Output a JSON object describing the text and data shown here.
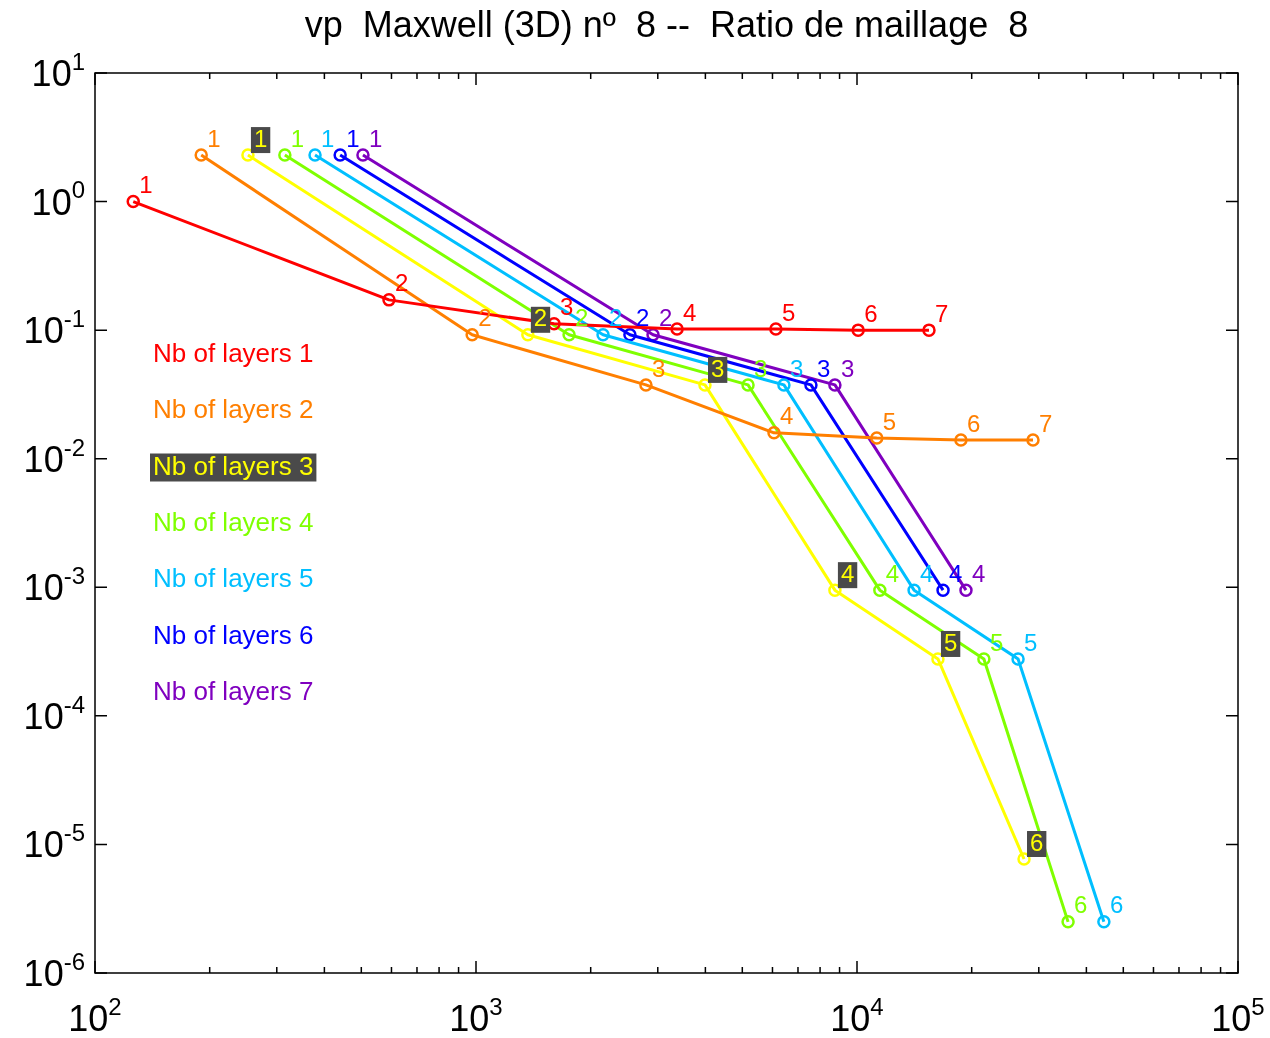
{
  "chart_data": {
    "type": "line",
    "title": "vp  Maxwell (3D) nº  8 --  Ratio de maillage  8",
    "log": "xy",
    "marker": "circle",
    "legend": "left",
    "grid": false,
    "xlim": [
      100,
      100000
    ],
    "xticks": [
      {
        "value": 100,
        "label": "10$^{2}$"
      },
      {
        "value": 200,
        "label": null
      },
      {
        "value": 300,
        "label": null
      },
      {
        "value": 400,
        "label": null
      },
      {
        "value": 500,
        "label": null
      },
      {
        "value": 600,
        "label": null
      },
      {
        "value": 700,
        "label": null
      },
      {
        "value": 800,
        "label": null
      },
      {
        "value": 900,
        "label": null
      },
      {
        "value": 1000,
        "label": "10$^{3}$"
      },
      {
        "value": 2000,
        "label": null
      },
      {
        "value": 3000,
        "label": null
      },
      {
        "value": 4000,
        "label": null
      },
      {
        "value": 5000,
        "label": null
      },
      {
        "value": 6000,
        "label": null
      },
      {
        "value": 7000,
        "label": null
      },
      {
        "value": 8000,
        "label": null
      },
      {
        "value": 9000,
        "label": null
      },
      {
        "value": 10000,
        "label": "10$^{4}$"
      },
      {
        "value": 20000,
        "label": null
      },
      {
        "value": 30000,
        "label": null
      },
      {
        "value": 40000,
        "label": null
      },
      {
        "value": 50000,
        "label": null
      },
      {
        "value": 60000,
        "label": null
      },
      {
        "value": 70000,
        "label": null
      },
      {
        "value": 80000,
        "label": null
      },
      {
        "value": 90000,
        "label": null
      },
      {
        "value": 100000,
        "label": "10$^{5}$"
      }
    ],
    "ylim": [
      1e-06,
      10
    ],
    "yticks": [
      {
        "value": 1e-06,
        "label": "10$^{-6}$"
      },
      {
        "value": 1e-05,
        "label": "10$^{-5}$"
      },
      {
        "value": 0.0001,
        "label": "10$^{-4}$"
      },
      {
        "value": 0.001,
        "label": "10$^{-3}$"
      },
      {
        "value": 0.01,
        "label": "10$^{-2}$"
      },
      {
        "value": 0.1,
        "label": "10$^{-1}$"
      },
      {
        "value": 1,
        "label": "10$^{0}$"
      },
      {
        "value": 10,
        "label": "10$^{1}$"
      }
    ],
    "series": [
      {
        "name": "Nb of layers 1",
        "color": "#ff0000",
        "x": [
          126,
          591,
          1603,
          3371,
          6125,
          10070,
          15450
        ],
        "values": [
          1.0,
          0.172,
          0.112,
          0.102,
          0.102,
          0.1,
          0.1
        ]
      },
      {
        "name": "Nb of layers 2",
        "color": "#ff7f00",
        "x": [
          190,
          977,
          2793,
          6055,
          11270,
          18740,
          28970
        ],
        "values": [
          2.3,
          0.092,
          0.0375,
          0.0159,
          0.0145,
          0.014,
          0.014
        ]
      },
      {
        "name": "Nb of layers 3",
        "color": "#ffff00",
        "x": [
          252,
          1368,
          3990,
          8750,
          16310,
          27440
        ],
        "values": [
          2.3,
          0.092,
          0.0375,
          0.00095,
          0.000277,
          7.7e-06
        ]
      },
      {
        "name": "Nb of layers 4",
        "color": "#7fff00",
        "x": [
          315,
          1755,
          5176,
          11480,
          21530,
          35810
        ],
        "values": [
          2.3,
          0.092,
          0.0375,
          0.00095,
          0.000277,
          2.5e-06
        ]
      },
      {
        "name": "Nb of layers 5",
        "color": "#00bfff",
        "x": [
          378,
          2155,
          6430,
          14120,
          26470,
          44460
        ],
        "values": [
          2.3,
          0.092,
          0.0375,
          0.00095,
          0.000277,
          2.5e-06
        ]
      },
      {
        "name": "Nb of layers 6",
        "color": "#0000ff",
        "x": [
          440,
          2535,
          7570,
          16820
        ],
        "values": [
          2.3,
          0.092,
          0.0375,
          0.00095
        ]
      },
      {
        "name": "Nb of layers 7",
        "color": "#7f00bf",
        "x": [
          505,
          2915,
          8750,
          19320
        ],
        "values": [
          2.3,
          0.092,
          0.0375,
          0.00095
        ]
      }
    ],
    "annotations": [
      {
        "text": "1",
        "x": 126,
        "y": 1.0
      },
      {
        "text": "2",
        "x": 591,
        "y": 0.172
      },
      {
        "text": "3",
        "x": 1603,
        "y": 0.112
      },
      {
        "text": "4",
        "x": 3371,
        "y": 0.102
      },
      {
        "text": "5",
        "x": 6125,
        "y": 0.102
      },
      {
        "text": "6",
        "x": 10070,
        "y": 0.1
      },
      {
        "text": "7",
        "x": 15450,
        "y": 0.1
      },
      {
        "text": "1",
        "x": 190,
        "y": 2.3
      },
      {
        "text": "2",
        "x": 977,
        "y": 0.092
      },
      {
        "text": "3",
        "x": 2793,
        "y": 0.0375
      },
      {
        "text": "4",
        "x": 6055,
        "y": 0.0159
      },
      {
        "text": "5",
        "x": 11270,
        "y": 0.0145
      },
      {
        "text": "6",
        "x": 18740,
        "y": 0.014
      },
      {
        "text": "7",
        "x": 28970,
        "y": 0.014
      },
      {
        "text": "1",
        "x": 252,
        "y": 2.3
      },
      {
        "text": "2",
        "x": 1368,
        "y": 0.092
      },
      {
        "text": "3",
        "x": 3990,
        "y": 0.0375
      },
      {
        "text": "4",
        "x": 8750,
        "y": 0.00095
      },
      {
        "text": "5",
        "x": 16310,
        "y": 0.000277
      },
      {
        "text": "6",
        "x": 27440,
        "y": 7.7e-06
      },
      {
        "text": "1",
        "x": 315,
        "y": 2.3
      },
      {
        "text": "2",
        "x": 1755,
        "y": 0.092
      },
      {
        "text": "3",
        "x": 5176,
        "y": 0.0375
      },
      {
        "text": "4",
        "x": 11480,
        "y": 0.00095
      },
      {
        "text": "5",
        "x": 21530,
        "y": 0.000277
      },
      {
        "text": "6",
        "x": 35810,
        "y": 2.5e-06
      },
      {
        "text": "1",
        "x": 378,
        "y": 2.3
      },
      {
        "text": "2",
        "x": 2155,
        "y": 0.092
      },
      {
        "text": "3",
        "x": 6430,
        "y": 0.0375
      },
      {
        "text": "4",
        "x": 14120,
        "y": 0.00095
      },
      {
        "text": "5",
        "x": 26470,
        "y": 0.000277
      },
      {
        "text": "6",
        "x": 44460,
        "y": 2.5e-06
      },
      {
        "text": "1",
        "x": 440,
        "y": 2.3
      },
      {
        "text": "2",
        "x": 2535,
        "y": 0.092
      },
      {
        "text": "3",
        "x": 7570,
        "y": 0.0375
      },
      {
        "text": "4",
        "x": 16820,
        "y": 0.00095
      },
      {
        "text": "1",
        "x": 505,
        "y": 2.3
      },
      {
        "text": "2",
        "x": 2915,
        "y": 0.092
      },
      {
        "text": "3",
        "x": 8750,
        "y": 0.0375
      },
      {
        "text": "4",
        "x": 19320,
        "y": 0.00095
      }
    ]
  }
}
